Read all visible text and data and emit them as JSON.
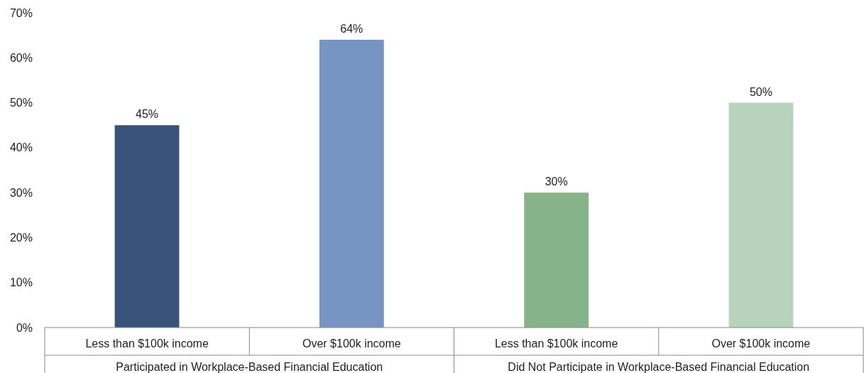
{
  "chart_data": {
    "type": "bar",
    "categories": [
      "Less than $100k income",
      "Over $100k income",
      "Less than $100k income",
      "Over $100k income"
    ],
    "values": [
      45,
      64,
      30,
      50
    ],
    "colors": [
      "#38537c",
      "#7795c3",
      "#87b38b",
      "#b8d3bc"
    ],
    "value_labels": [
      "45%",
      "64%",
      "30%",
      "50%"
    ],
    "ylim": [
      0,
      70
    ],
    "yticks": [
      {
        "value": 0,
        "label": "0%"
      },
      {
        "value": 10,
        "label": "10%"
      },
      {
        "value": 20,
        "label": "20%"
      },
      {
        "value": 30,
        "label": "30%"
      },
      {
        "value": 40,
        "label": "40%"
      },
      {
        "value": 50,
        "label": "50%"
      },
      {
        "value": 60,
        "label": "60%"
      },
      {
        "value": 70,
        "label": "70%"
      }
    ],
    "annotations": [
      "Participated in Workplace-Based Financial Education",
      "Did Not Participate in Workplace-Based Financial Education"
    ],
    "grid": false
  }
}
